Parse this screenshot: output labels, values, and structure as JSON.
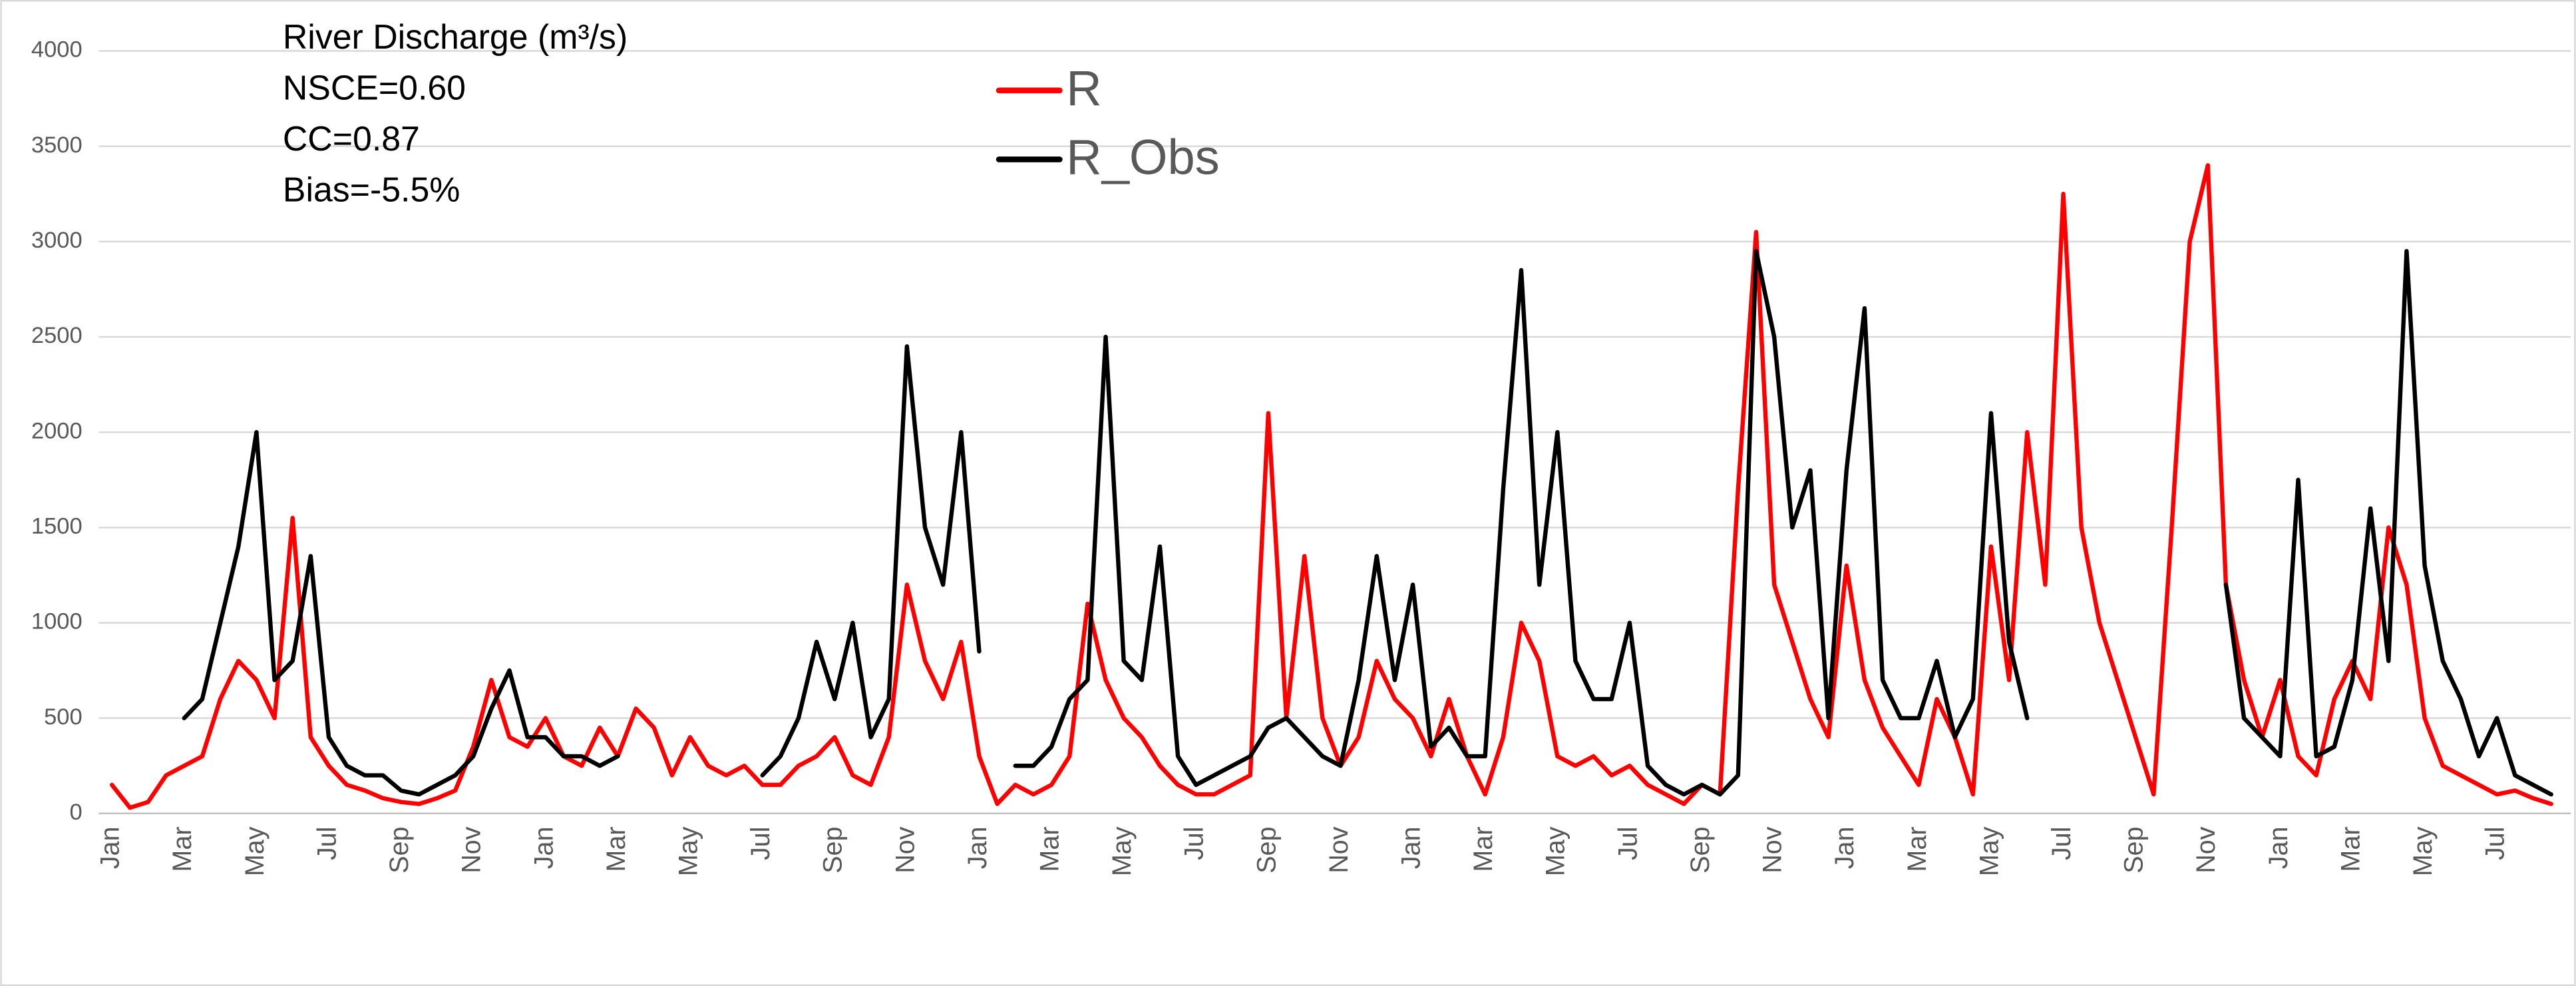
{
  "chart_data": {
    "type": "line",
    "annotations": [
      "River Discharge (m³/s)",
      "NSCE=0.60",
      "CC=0.87",
      "Bias=-5.5%"
    ],
    "categories": [
      "Jan",
      null,
      null,
      null,
      "Mar",
      null,
      null,
      null,
      "May",
      null,
      null,
      null,
      "Jul",
      null,
      null,
      null,
      "Sep",
      null,
      null,
      null,
      "Nov",
      null,
      null,
      null,
      "Jan",
      null,
      null,
      null,
      "Mar",
      null,
      null,
      null,
      "May",
      null,
      null,
      null,
      "Jul",
      null,
      null,
      null,
      "Sep",
      null,
      null,
      null,
      "Nov",
      null,
      null,
      null,
      "Jan",
      null,
      null,
      null,
      "Mar",
      null,
      null,
      null,
      "May",
      null,
      null,
      null,
      "Jul",
      null,
      null,
      null,
      "Sep",
      null,
      null,
      null,
      "Nov",
      null,
      null,
      null,
      "Jan",
      null,
      null,
      null,
      "Mar",
      null,
      null,
      null,
      "May",
      null,
      null,
      null,
      "Jul",
      null,
      null,
      null,
      "Sep",
      null,
      null,
      null,
      "Nov",
      null,
      null,
      null,
      "Jan",
      null,
      null,
      null,
      "Mar",
      null,
      null,
      null,
      "May",
      null,
      null,
      null,
      "Jul",
      null,
      null,
      null,
      "Sep",
      null,
      null,
      null,
      "Nov",
      null,
      null,
      null,
      "Jan",
      null,
      null,
      null,
      "Mar",
      null,
      null,
      null,
      "May",
      null,
      null,
      null,
      "Jul",
      null,
      null,
      null
    ],
    "series": [
      {
        "name": "R",
        "color": "#ff0000",
        "values": [
          150,
          30,
          60,
          200,
          250,
          300,
          600,
          800,
          700,
          500,
          1550,
          400,
          250,
          150,
          120,
          80,
          60,
          50,
          80,
          120,
          350,
          700,
          400,
          350,
          500,
          300,
          250,
          450,
          300,
          550,
          450,
          200,
          400,
          250,
          200,
          250,
          150,
          150,
          250,
          300,
          400,
          200,
          150,
          400,
          1200,
          800,
          600,
          900,
          300,
          50,
          150,
          100,
          150,
          300,
          1100,
          700,
          500,
          400,
          250,
          150,
          100,
          100,
          150,
          200,
          2100,
          500,
          1350,
          500,
          250,
          400,
          800,
          600,
          500,
          300,
          600,
          300,
          100,
          400,
          1000,
          800,
          300,
          250,
          300,
          200,
          250,
          150,
          100,
          50,
          150,
          100,
          1700,
          3050,
          1200,
          900,
          600,
          400,
          1300,
          700,
          450,
          300,
          150,
          600,
          400,
          100,
          1400,
          700,
          2000,
          1200,
          3250,
          1500,
          1000,
          700,
          400,
          100,
          1500,
          3000,
          3400,
          1200,
          700,
          400,
          700,
          300,
          200,
          600,
          800,
          600,
          1500,
          1200,
          500,
          250,
          200,
          150,
          100,
          120,
          80,
          50
        ]
      },
      {
        "name": "R_Obs",
        "color": "#000000",
        "values": [
          null,
          null,
          null,
          null,
          500,
          600,
          1000,
          1400,
          2000,
          700,
          800,
          1350,
          400,
          250,
          200,
          200,
          120,
          100,
          150,
          200,
          300,
          550,
          750,
          400,
          400,
          300,
          300,
          250,
          300,
          null,
          null,
          null,
          null,
          null,
          null,
          null,
          200,
          300,
          500,
          900,
          600,
          1000,
          400,
          600,
          2450,
          1500,
          1200,
          2000,
          850,
          null,
          250,
          250,
          350,
          600,
          700,
          2500,
          800,
          700,
          1400,
          300,
          150,
          200,
          250,
          300,
          450,
          500,
          400,
          300,
          250,
          700,
          1350,
          700,
          1200,
          350,
          450,
          300,
          300,
          1700,
          2850,
          1200,
          2000,
          800,
          600,
          600,
          1000,
          250,
          150,
          100,
          150,
          100,
          200,
          2950,
          2500,
          1500,
          1800,
          500,
          1800,
          2650,
          700,
          500,
          500,
          800,
          400,
          600,
          2100,
          900,
          500,
          null,
          null,
          null,
          null,
          null,
          null,
          null,
          null,
          null,
          null,
          1200,
          500,
          400,
          300,
          1750,
          300,
          350,
          700,
          1600,
          800,
          2950,
          1300,
          800,
          600,
          300,
          500,
          200,
          150,
          100
        ]
      }
    ],
    "ylim": [
      0,
      4000
    ],
    "yticks": [
      0,
      500,
      1000,
      1500,
      2000,
      2500,
      3000,
      3500,
      4000
    ],
    "grid": true,
    "legend": "top"
  }
}
